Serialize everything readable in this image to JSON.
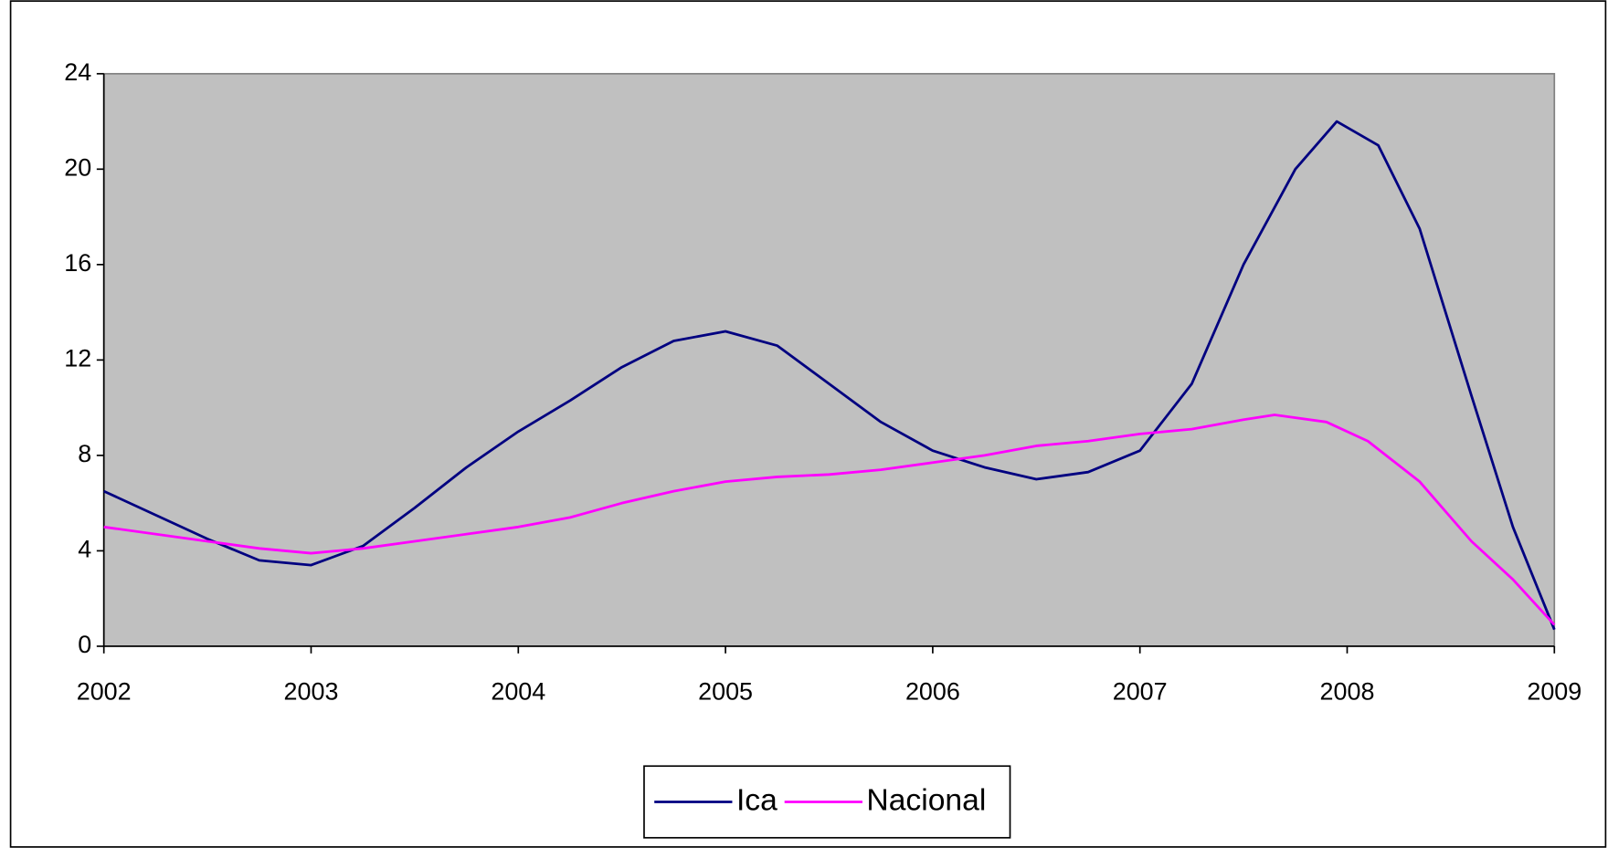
{
  "chart_data": {
    "type": "line",
    "xlim": [
      2002,
      2009
    ],
    "xticks": [
      2002,
      2003,
      2004,
      2005,
      2006,
      2007,
      2008,
      2009
    ],
    "ylim": [
      0,
      24
    ],
    "yticks": [
      0,
      4,
      8,
      12,
      16,
      20,
      24
    ],
    "legend": "bottom",
    "series": [
      {
        "name": "Ica",
        "color": "#000080",
        "x": [
          2002,
          2002.25,
          2002.5,
          2002.75,
          2003,
          2003.25,
          2003.5,
          2003.75,
          2004,
          2004.25,
          2004.5,
          2004.75,
          2005,
          2005.25,
          2005.5,
          2005.75,
          2006,
          2006.25,
          2006.5,
          2006.75,
          2007,
          2007.25,
          2007.5,
          2007.75,
          2007.95,
          2008.15,
          2008.35,
          2008.6,
          2008.8,
          2009
        ],
        "values": [
          6.5,
          5.5,
          4.5,
          3.6,
          3.4,
          4.2,
          5.8,
          7.5,
          9.0,
          10.3,
          11.7,
          12.8,
          13.2,
          12.6,
          11.0,
          9.4,
          8.2,
          7.5,
          7.0,
          7.3,
          8.2,
          11.0,
          16.0,
          20.0,
          22.0,
          21.0,
          17.5,
          10.5,
          5.0,
          0.7
        ]
      },
      {
        "name": "Nacional",
        "color": "#ff00ff",
        "x": [
          2002,
          2002.5,
          2002.75,
          2003,
          2003.25,
          2003.5,
          2003.75,
          2004,
          2004.25,
          2004.5,
          2004.75,
          2005,
          2005.25,
          2005.5,
          2005.75,
          2006,
          2006.25,
          2006.5,
          2006.75,
          2007,
          2007.25,
          2007.5,
          2007.65,
          2007.9,
          2008.1,
          2008.35,
          2008.6,
          2008.8,
          2009
        ],
        "values": [
          5.0,
          4.4,
          4.1,
          3.9,
          4.1,
          4.4,
          4.7,
          5.0,
          5.4,
          6.0,
          6.5,
          6.9,
          7.1,
          7.2,
          7.4,
          7.7,
          8.0,
          8.4,
          8.6,
          8.9,
          9.1,
          9.5,
          9.7,
          9.4,
          8.6,
          6.9,
          4.4,
          2.8,
          0.9
        ]
      }
    ]
  }
}
